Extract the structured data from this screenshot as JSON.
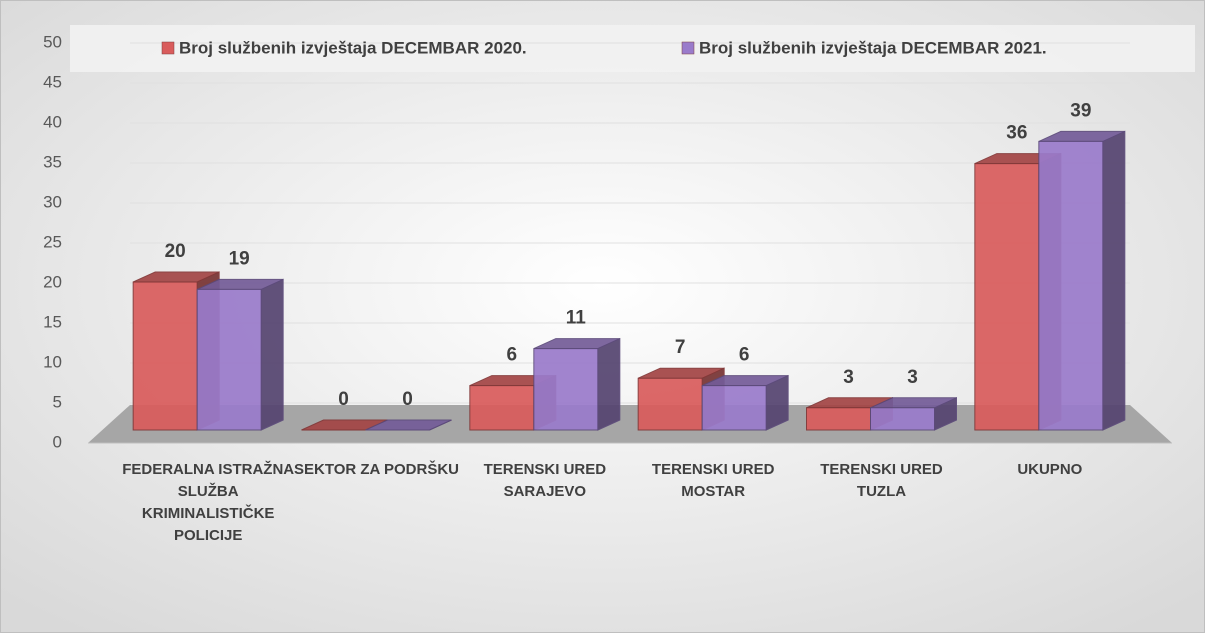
{
  "chart_data": {
    "type": "bar3d",
    "categories": [
      "FEDERALNA ISTRAŽNA SLUŽBA KRIMINALISTIČKE POLICIJE",
      "SEKTOR ZA PODRŠKU",
      "TERENSKI URED SARAJEVO",
      "TERENSKI URED MOSTAR",
      "TERENSKI URED TUZLA",
      "UKUPNO"
    ],
    "series": [
      {
        "name": "Broj službenih izvještaja DECEMBAR 2020.",
        "color": "#d95c5c",
        "values": [
          20,
          0,
          6,
          7,
          3,
          36
        ]
      },
      {
        "name": "Broj službenih izvještaja DECEMBAR 2021.",
        "color": "#9a7bcb",
        "values": [
          19,
          0,
          11,
          6,
          3,
          39
        ]
      }
    ],
    "ylim": [
      0,
      50
    ],
    "yticks": [
      0,
      5,
      10,
      15,
      20,
      25,
      30,
      35,
      40,
      45,
      50
    ],
    "grid": true,
    "legend": "top"
  }
}
